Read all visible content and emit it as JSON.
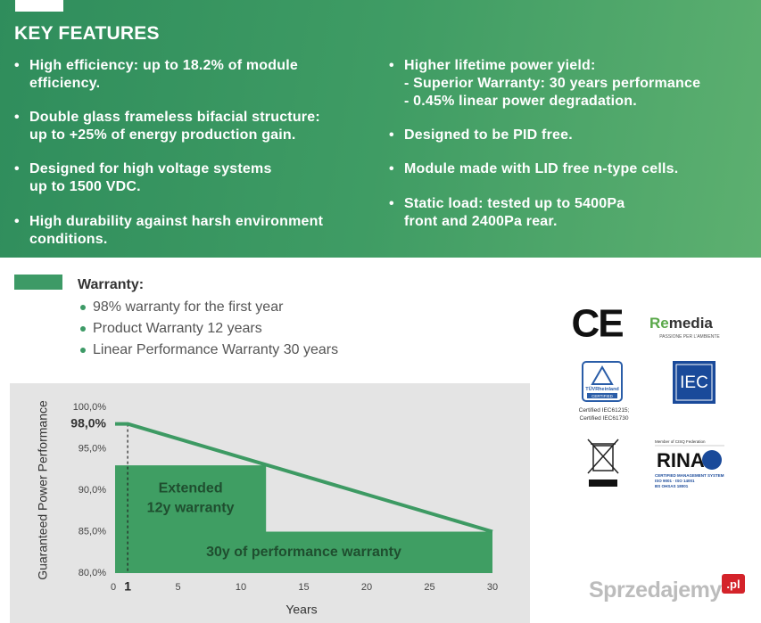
{
  "header": {
    "title": "KEY FEATURES"
  },
  "features": {
    "left": [
      [
        "High efficiency: up to 18.2% of module",
        "efficiency."
      ],
      [
        "Double glass frameless bifacial structure:",
        "up to +25% of energy production gain."
      ],
      [
        "Designed for high voltage systems",
        "up to 1500 VDC."
      ],
      [
        "High durability against harsh environment",
        "conditions."
      ]
    ],
    "right": [
      [
        "Higher lifetime power yield:",
        "- Superior Warranty: 30 years performance",
        "- 0.45% linear power degradation."
      ],
      [
        "Designed to be PID free."
      ],
      [
        "Module made with LID free n-type cells."
      ],
      [
        "Static load: tested up to 5400Pa",
        "front and 2400Pa rear."
      ]
    ]
  },
  "warranty": {
    "title": "Warranty:",
    "items": [
      "98% warranty for the first year",
      "Product Warranty 12 years",
      "Linear Performance Warranty 30 years"
    ]
  },
  "chart_data": {
    "type": "line",
    "xlabel": "Years",
    "ylabel": "Guaranteed Power Performance",
    "xlim": [
      0,
      30
    ],
    "ylim": [
      80,
      100
    ],
    "xticks": [
      0,
      5,
      10,
      15,
      20,
      25,
      30
    ],
    "yticks": [
      {
        "value": 80,
        "label": "80,0%"
      },
      {
        "value": 85,
        "label": "85,0%"
      },
      {
        "value": 90,
        "label": "90,0%"
      },
      {
        "value": 95,
        "label": "95,0%"
      },
      {
        "value": 100,
        "label": "100,0%"
      }
    ],
    "marker": {
      "x": 1,
      "y": {
        "value": 98,
        "label": "98,0%"
      }
    },
    "series": [
      {
        "x": [
          0,
          1,
          30
        ],
        "values": [
          98,
          98,
          85
        ],
        "color": "#3d9a63"
      }
    ],
    "bands": [
      {
        "lines": [
          "Extended",
          "12y warranty"
        ],
        "xlim": [
          0,
          12
        ],
        "top": 93
      },
      {
        "lines": [
          "30y of performance warranty"
        ],
        "xlim": [
          0,
          30
        ],
        "top": 85
      }
    ],
    "band_color": "#3f9e63",
    "label_color": "#1f4e2f"
  },
  "certifications": {
    "ce": "CE",
    "remedia": {
      "name": [
        "Re",
        "media"
      ],
      "tagline": "PASSIONE PER L'AMBIENTE"
    },
    "tuv": {
      "name": "TÜVRheinland",
      "badge": "CERTIFIED",
      "notes": [
        "Certified IEC61215;",
        "Certified IEC61730"
      ]
    },
    "iec": "IEC",
    "rina": {
      "top": "Member of CISQ Federation",
      "name": "RINA",
      "lines": [
        "CERTIFIED MANAGEMENT SYSTEM",
        "ISO 9001 · ISO 14001",
        "BS OHSAS 18001"
      ]
    }
  },
  "watermark": {
    "name": "Sprzedajemy",
    "suffix": ".pl"
  }
}
